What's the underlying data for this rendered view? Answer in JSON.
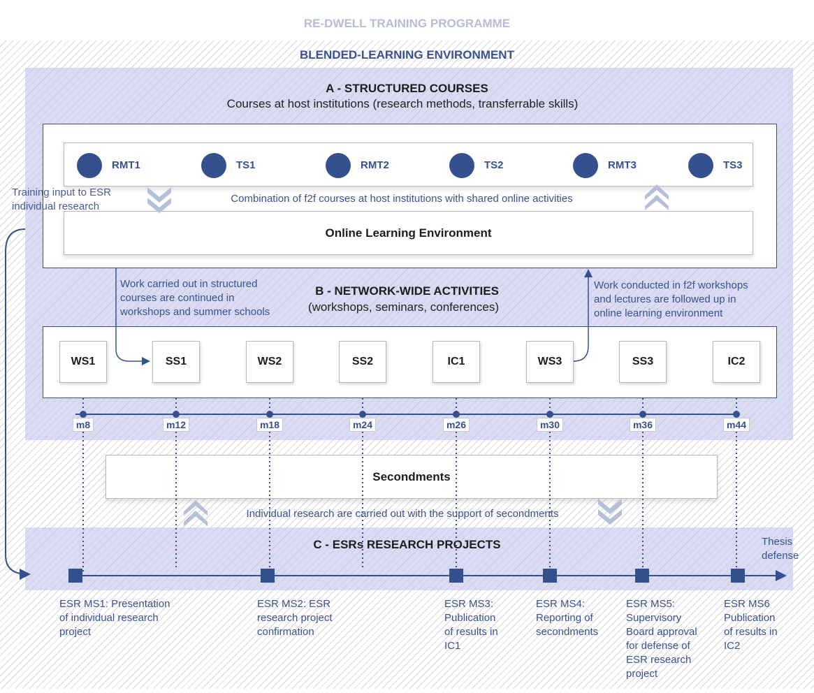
{
  "title": "RE-DWELL TRAINING PROGRAMME",
  "environment_title": "BLENDED-LEARNING ENVIRONMENT",
  "section_a": {
    "title": "A - STRUCTURED COURSES",
    "subtitle": "Courses at host institutions (research methods, transferrable skills)",
    "courses": [
      "RMT1",
      "TS1",
      "RMT2",
      "TS2",
      "RMT3",
      "TS3"
    ],
    "combination_note": "Combination of f2f courses at host institutions with shared online activities",
    "online_env": "Online Learning Environment"
  },
  "training_input_note": [
    "Training input to ESR",
    "individual research"
  ],
  "section_b": {
    "title": "B - NETWORK-WIDE ACTIVITIES",
    "subtitle": "(workshops, seminars, conferences)",
    "left_note": [
      "Work carried out in structured",
      "courses are continued in",
      "workshops and summer schools"
    ],
    "right_note": [
      "Work conducted in f2f workshops",
      "and lectures are followed up in",
      "online learning environment"
    ],
    "activities": [
      "WS1",
      "SS1",
      "WS2",
      "SS2",
      "IC1",
      "WS3",
      "SS3",
      "IC2"
    ],
    "months": [
      "m8",
      "m12",
      "m18",
      "m24",
      "m26",
      "m30",
      "m36",
      "m44"
    ]
  },
  "secondments": {
    "label": "Secondments",
    "note": "Individual research are carried out with the support of secondments"
  },
  "section_c": {
    "title": "C - ESRs RESEARCH PROJECTS",
    "end_label": [
      "Thesis",
      "defense"
    ],
    "milestones": [
      [
        "ESR MS1: Presentation",
        "of individual research",
        "project"
      ],
      [
        "ESR MS2: ESR",
        "research project",
        "confirmation"
      ],
      [
        "ESR MS3:",
        "Publication",
        "of results in",
        "IC1"
      ],
      [
        "ESR MS4:",
        "Reporting of",
        "secondments"
      ],
      [
        "ESR MS5:",
        "Supervisory",
        "Board approval",
        "for defense of",
        "ESR research",
        "project"
      ],
      [
        "ESR MS6",
        "Publication",
        "of results in",
        "IC2"
      ]
    ]
  },
  "colors": {
    "navy": "#34508f",
    "panel": "#c4c6ec",
    "title_grey": "#b3bed6",
    "chevron": "#b4c0d8"
  }
}
